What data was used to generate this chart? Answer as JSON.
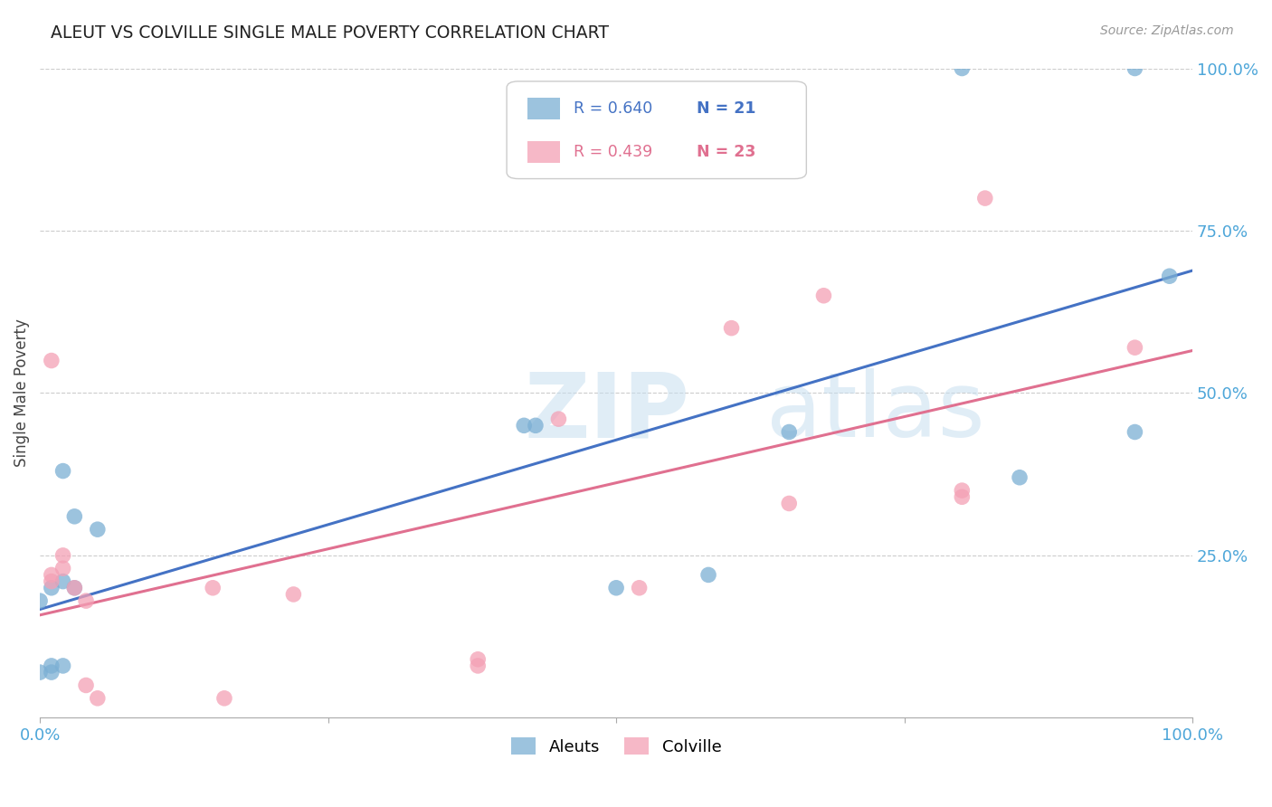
{
  "title": "ALEUT VS COLVILLE SINGLE MALE POVERTY CORRELATION CHART",
  "source": "Source: ZipAtlas.com",
  "ylabel": "Single Male Poverty",
  "xlim": [
    0.0,
    1.0
  ],
  "ylim": [
    0.0,
    1.0
  ],
  "ytick_labels": [
    "25.0%",
    "50.0%",
    "75.0%",
    "100.0%"
  ],
  "ytick_vals": [
    0.25,
    0.5,
    0.75,
    1.0
  ],
  "aleuts_color": "#7bafd4",
  "colville_color": "#f4a0b5",
  "aleuts_line_color": "#4472c4",
  "colville_line_color": "#e07090",
  "aleuts_R": 0.64,
  "aleuts_N": 21,
  "colville_R": 0.439,
  "colville_N": 23,
  "aleuts_x": [
    0.0,
    0.0,
    0.01,
    0.01,
    0.01,
    0.02,
    0.02,
    0.02,
    0.03,
    0.03,
    0.05,
    0.42,
    0.43,
    0.5,
    0.58,
    0.65,
    0.8,
    0.85,
    0.95,
    0.95,
    0.98
  ],
  "aleuts_y": [
    0.18,
    0.07,
    0.2,
    0.08,
    0.07,
    0.38,
    0.21,
    0.08,
    0.31,
    0.2,
    0.29,
    0.45,
    0.45,
    0.2,
    0.22,
    0.44,
    1.0,
    0.37,
    0.44,
    1.0,
    0.68
  ],
  "colville_x": [
    0.01,
    0.01,
    0.01,
    0.02,
    0.02,
    0.03,
    0.04,
    0.04,
    0.05,
    0.15,
    0.16,
    0.22,
    0.38,
    0.38,
    0.45,
    0.52,
    0.6,
    0.65,
    0.68,
    0.8,
    0.8,
    0.82,
    0.95
  ],
  "colville_y": [
    0.55,
    0.22,
    0.21,
    0.25,
    0.23,
    0.2,
    0.18,
    0.05,
    0.03,
    0.2,
    0.03,
    0.19,
    0.09,
    0.08,
    0.46,
    0.2,
    0.6,
    0.33,
    0.65,
    0.35,
    0.34,
    0.8,
    0.57
  ],
  "watermark_zip": "ZIP",
  "watermark_atlas": "atlas",
  "background_color": "#ffffff",
  "grid_color": "#cccccc",
  "title_color": "#222222",
  "source_color": "#999999",
  "tick_color": "#4da6d9",
  "ylabel_color": "#444444"
}
